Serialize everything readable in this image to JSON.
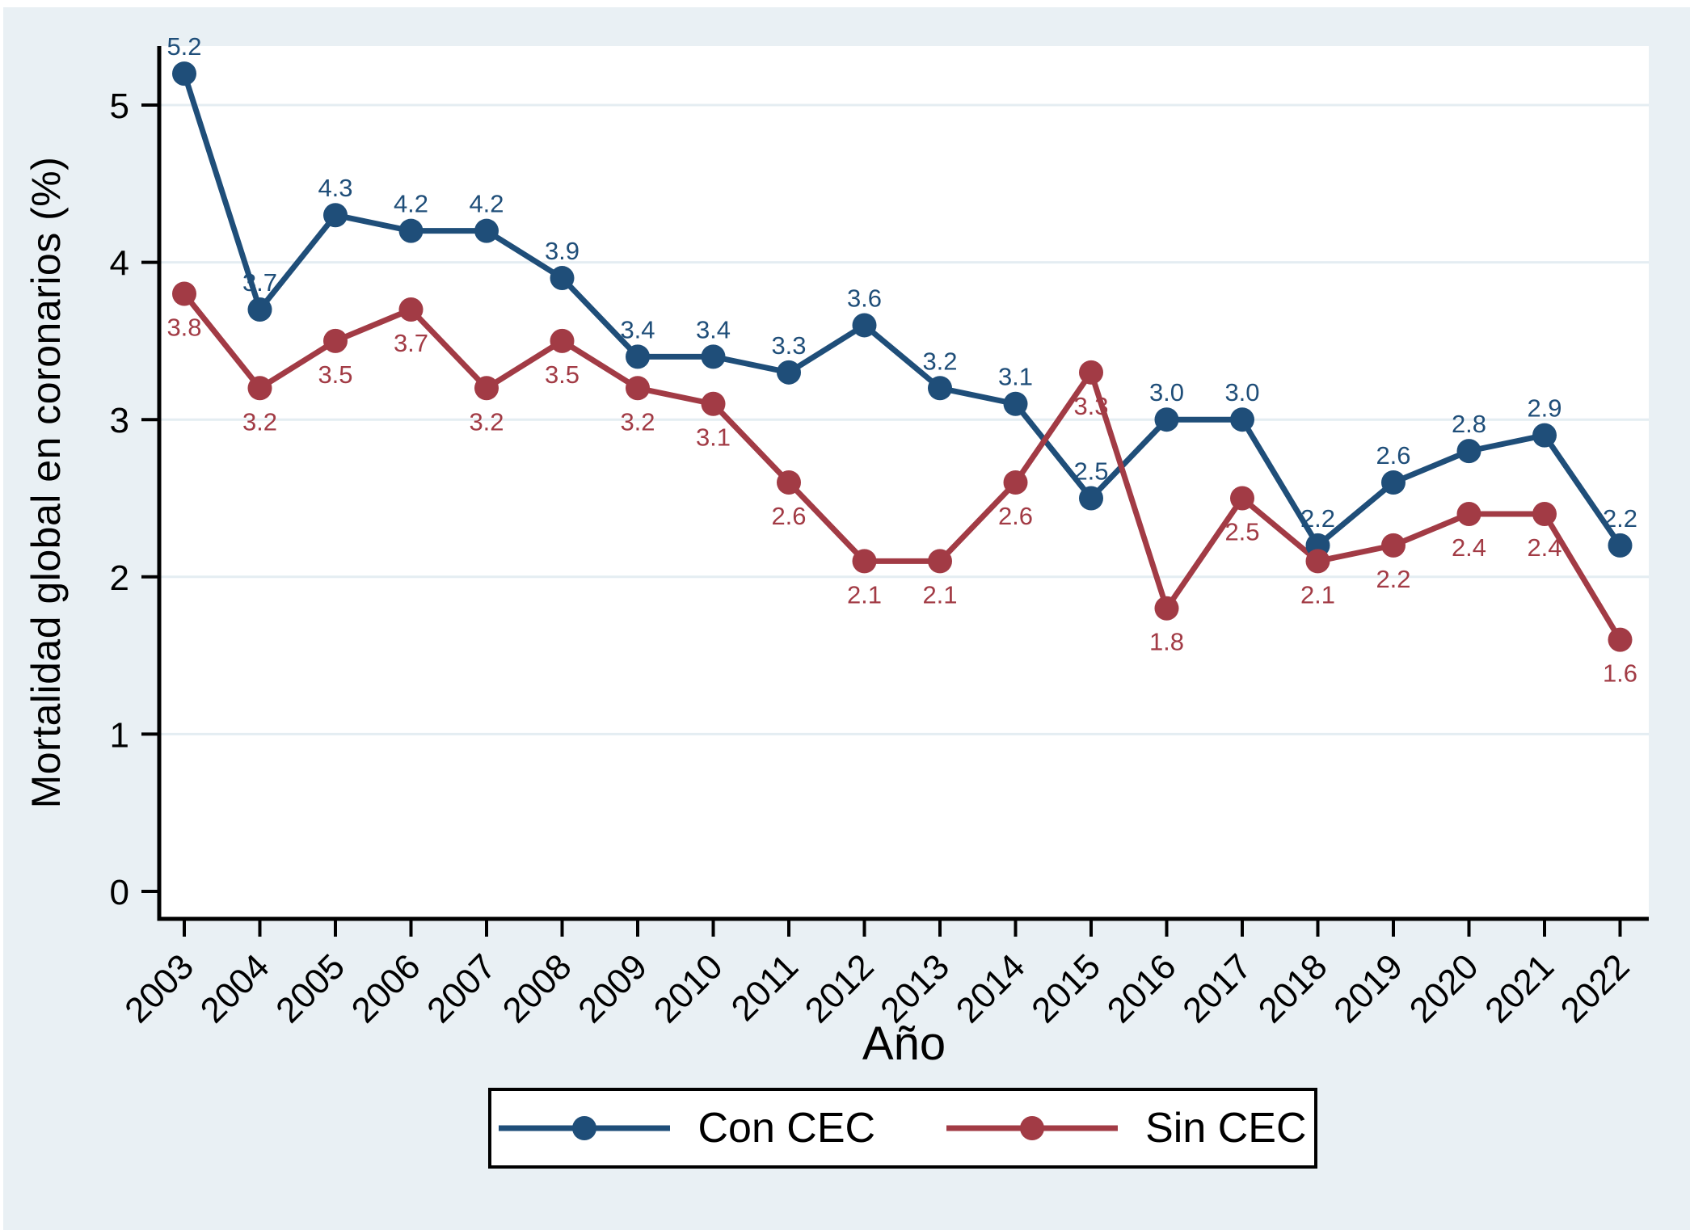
{
  "figure": {
    "background_color": "#e9f0f4",
    "plot_background_color": "#ffffff",
    "grid_color": "#e4edf2",
    "axis_color": "#000000"
  },
  "chart_data": {
    "type": "line",
    "title": "",
    "xlabel": "Año",
    "ylabel": "Mortalidad global en coronarios (%)",
    "x": [
      2003,
      2004,
      2005,
      2006,
      2007,
      2008,
      2009,
      2010,
      2011,
      2012,
      2013,
      2014,
      2015,
      2016,
      2017,
      2018,
      2019,
      2020,
      2021,
      2022
    ],
    "series": [
      {
        "name": "Con CEC",
        "color": "#1f4e79",
        "values": [
          5.2,
          3.7,
          4.3,
          4.2,
          4.2,
          3.9,
          3.4,
          3.4,
          3.3,
          3.6,
          3.2,
          3.1,
          2.5,
          3.0,
          3.0,
          2.2,
          2.6,
          2.8,
          2.9,
          2.2
        ],
        "label_position": "above"
      },
      {
        "name": "Sin CEC",
        "color": "#a23b45",
        "values": [
          3.8,
          3.2,
          3.5,
          3.7,
          3.2,
          3.5,
          3.2,
          3.1,
          2.6,
          2.1,
          2.1,
          2.6,
          3.3,
          1.8,
          2.5,
          2.1,
          2.2,
          2.4,
          2.4,
          1.6
        ],
        "label_position": "below"
      }
    ],
    "ylim": [
      0,
      5.4
    ],
    "yticks": [
      0,
      1,
      2,
      3,
      4,
      5
    ],
    "grid": true,
    "value_labels_decimals": 1,
    "legend_position": "bottom-center"
  },
  "legend": {
    "items": [
      {
        "label": "Con CEC",
        "color": "#1f4e79"
      },
      {
        "label": "Sin CEC",
        "color": "#a23b45"
      }
    ]
  }
}
